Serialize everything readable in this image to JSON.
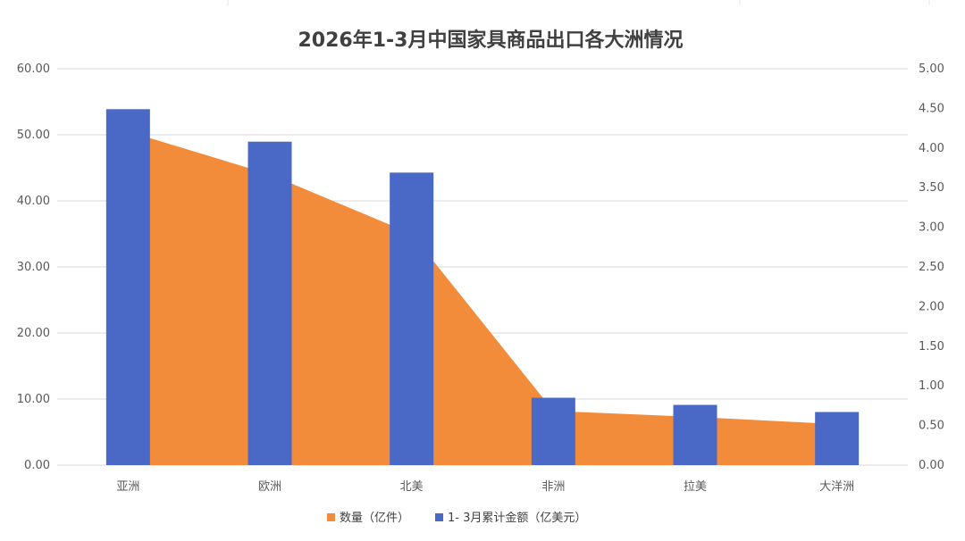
{
  "chart_data": {
    "type": "bar",
    "title": "2026年1-3月中国家具商品出口各大洲情况",
    "categories": [
      "亚洲",
      "欧洲",
      "北美",
      "非洲",
      "拉美",
      "大洋洲"
    ],
    "series": [
      {
        "name": "数量（亿件）",
        "type": "area",
        "axis": "left",
        "color": "#F28C3B",
        "values": [
          50.5,
          44.0,
          35.0,
          8.2,
          7.3,
          6.2
        ]
      },
      {
        "name": "1- 3月累计金额（亿美元）",
        "type": "bar",
        "axis": "right",
        "color": "#4A69C6",
        "values": [
          4.49,
          4.08,
          3.69,
          0.85,
          0.76,
          0.67
        ]
      }
    ],
    "y_left": {
      "min": 0,
      "max": 60,
      "ticks": [
        "0.00",
        "10.00",
        "20.00",
        "30.00",
        "40.00",
        "50.00",
        "60.00"
      ]
    },
    "y_right": {
      "min": 0,
      "max": 5,
      "ticks": [
        "0.00",
        "0.50",
        "1.00",
        "1.50",
        "2.00",
        "2.50",
        "3.00",
        "3.50",
        "4.00",
        "4.50",
        "5.00"
      ]
    },
    "grid": true,
    "legend_position": "bottom"
  }
}
